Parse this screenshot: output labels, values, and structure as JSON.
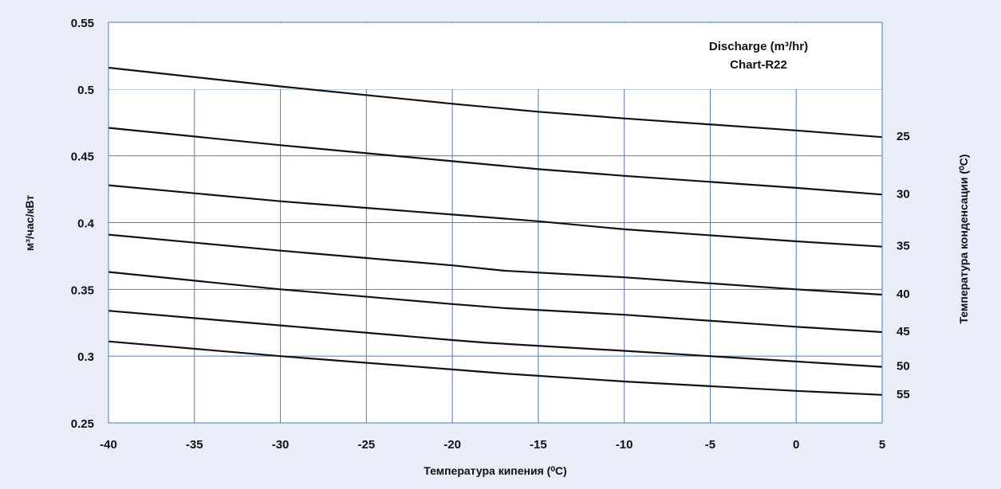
{
  "colors": {
    "background": "#e8edf7",
    "plot_area": "#ffffff",
    "gridline": "#4a7cc9",
    "curve": "#111111"
  },
  "chart_data": {
    "type": "line",
    "title_lines": [
      "Discharge (m³/hr)",
      "Chart-R22"
    ],
    "xlabel": "Температура кипения (⁰C)",
    "ylabel": "м³/час/кВт",
    "y2label": "Температура конденсации (⁰C)",
    "xlim": [
      -40,
      5
    ],
    "ylim": [
      0.25,
      0.55
    ],
    "x_ticks": [
      "-40",
      "-35",
      "-30",
      "-25",
      "-20",
      "-15",
      "-10",
      "-5",
      "0",
      "5"
    ],
    "y_ticks": [
      "0.25",
      "0.3",
      "0.35",
      "0.4",
      "0.45",
      "0.5",
      "0.55"
    ],
    "grid": true,
    "series": [
      {
        "name": "25",
        "x": [
          -40,
          -30,
          -20,
          -15,
          -10,
          0,
          5
        ],
        "y": [
          0.516,
          0.502,
          0.489,
          0.483,
          0.478,
          0.469,
          0.464
        ]
      },
      {
        "name": "30",
        "x": [
          -40,
          -30,
          -20,
          -15,
          -10,
          0,
          5
        ],
        "y": [
          0.471,
          0.458,
          0.446,
          0.44,
          0.435,
          0.426,
          0.421
        ]
      },
      {
        "name": "35",
        "x": [
          -40,
          -30,
          -20,
          -15,
          -10,
          0,
          5
        ],
        "y": [
          0.428,
          0.416,
          0.406,
          0.401,
          0.395,
          0.386,
          0.382
        ]
      },
      {
        "name": "40",
        "x": [
          -40,
          -30,
          -20,
          -17,
          -10,
          0,
          5
        ],
        "y": [
          0.391,
          0.379,
          0.368,
          0.364,
          0.359,
          0.35,
          0.346
        ]
      },
      {
        "name": "45",
        "x": [
          -40,
          -30,
          -20,
          -17,
          -10,
          0,
          5
        ],
        "y": [
          0.363,
          0.35,
          0.339,
          0.336,
          0.331,
          0.322,
          0.318
        ]
      },
      {
        "name": "50",
        "x": [
          -40,
          -30,
          -20,
          -18,
          -10,
          0,
          5
        ],
        "y": [
          0.334,
          0.323,
          0.312,
          0.31,
          0.304,
          0.296,
          0.292
        ]
      },
      {
        "name": "55",
        "x": [
          -40,
          -30,
          -20,
          -17,
          -10,
          0,
          5
        ],
        "y": [
          0.311,
          0.3,
          0.29,
          0.287,
          0.281,
          0.274,
          0.271
        ]
      }
    ]
  }
}
